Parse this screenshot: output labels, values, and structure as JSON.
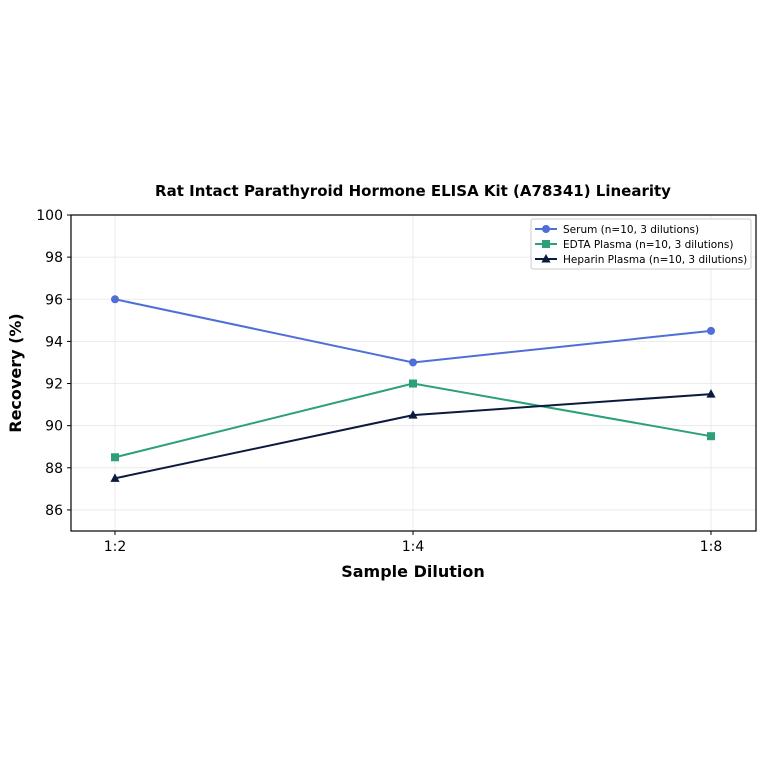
{
  "chart_data": {
    "type": "line",
    "title": "Rat Intact Parathyroid Hormone ELISA Kit (A78341) Linearity",
    "xlabel": "Sample Dilution",
    "ylabel": "Recovery (%)",
    "categories": [
      "1:2",
      "1:4",
      "1:8"
    ],
    "ylim": [
      85,
      100
    ],
    "yticks": [
      86,
      88,
      90,
      92,
      94,
      96,
      98,
      100
    ],
    "grid": true,
    "legend_position": "top-right",
    "series": [
      {
        "name": "Serum (n=10, 3 dilutions)",
        "values": [
          96,
          93,
          94.5
        ],
        "color": "#4f6fd6",
        "marker": "circle"
      },
      {
        "name": "EDTA Plasma (n=10, 3 dilutions)",
        "values": [
          88.5,
          92,
          89.5
        ],
        "color": "#2ca07a",
        "marker": "square"
      },
      {
        "name": "Heparin Plasma (n=10, 3 dilutions)",
        "values": [
          87.5,
          90.5,
          91.5
        ],
        "color": "#0b1a3e",
        "marker": "triangle"
      }
    ]
  }
}
